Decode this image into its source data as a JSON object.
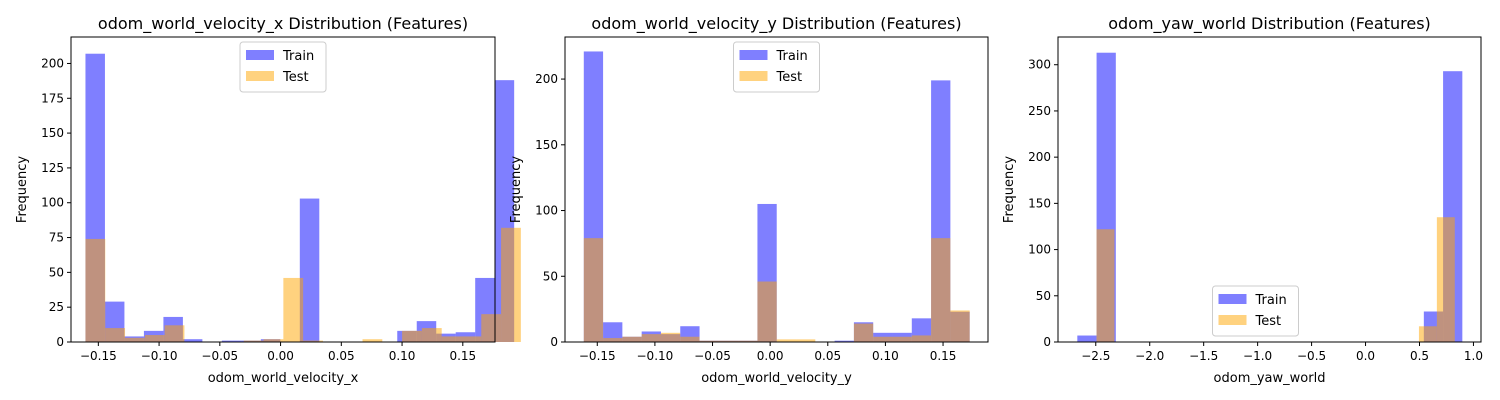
{
  "chart_data": [
    {
      "type": "bar",
      "title": "odom_world_velocity_x Distribution (Features)",
      "xlabel": "odom_world_velocity_x",
      "ylabel": "Frequency",
      "xlim": [
        -0.1725,
        0.1765
      ],
      "ylim": [
        0,
        219
      ],
      "xticks": [
        -0.15,
        -0.1,
        -0.05,
        0.0,
        0.05,
        0.1,
        0.15
      ],
      "xtick_labels": [
        "−0.15",
        "−0.10",
        "−0.05",
        "0.00",
        "0.05",
        "0.10",
        "0.15"
      ],
      "yticks": [
        0,
        25,
        50,
        75,
        100,
        125,
        150,
        175,
        200
      ],
      "ytick_labels": [
        "0",
        "25",
        "50",
        "75",
        "100",
        "125",
        "150",
        "175",
        "200"
      ],
      "legend_position": "top-center",
      "grid": false,
      "series": [
        {
          "name": "Train",
          "color": "#0000ff",
          "alpha": 0.5,
          "bin_start": -0.1606,
          "bin_width": 0.01604,
          "counts": [
            207,
            29,
            4,
            8,
            18,
            2,
            0,
            1,
            1,
            2,
            0,
            103,
            0,
            0,
            0,
            0,
            8,
            15,
            6,
            7,
            46,
            188
          ]
        },
        {
          "name": "Test",
          "color": "#ffa500",
          "alpha": 0.5,
          "bin_start": -0.1606,
          "bin_width": 0.01629,
          "counts": [
            74,
            10,
            3,
            5,
            12,
            0,
            0,
            0,
            1,
            2,
            46,
            1,
            0,
            0,
            2,
            0,
            8,
            10,
            4,
            4,
            20,
            82
          ]
        }
      ]
    },
    {
      "type": "bar",
      "title": "odom_world_velocity_y Distribution (Features)",
      "xlabel": "odom_world_velocity_y",
      "ylabel": "Frequency",
      "xlim": [
        -0.178,
        0.189
      ],
      "ylim": [
        0,
        232
      ],
      "xticks": [
        -0.15,
        -0.1,
        -0.05,
        0.0,
        0.05,
        0.1,
        0.15
      ],
      "xtick_labels": [
        "−0.15",
        "−0.10",
        "−0.05",
        "0.00",
        "0.05",
        "0.10",
        "0.15"
      ],
      "yticks": [
        0,
        50,
        100,
        150,
        200
      ],
      "ytick_labels": [
        "0",
        "50",
        "100",
        "150",
        "200"
      ],
      "legend_position": "top-center",
      "grid": false,
      "series": [
        {
          "name": "Train",
          "color": "#0000ff",
          "alpha": 0.5,
          "bin_start": -0.1617,
          "bin_width": 0.01674,
          "counts": [
            221,
            15,
            4,
            8,
            6,
            12,
            1,
            1,
            1,
            105,
            0,
            0,
            0,
            1,
            15,
            7,
            7,
            18,
            199,
            23
          ]
        },
        {
          "name": "Test",
          "color": "#ffa500",
          "alpha": 0.5,
          "bin_start": -0.1617,
          "bin_width": 0.01674,
          "counts": [
            79,
            3,
            4,
            6,
            7,
            4,
            1,
            1,
            1,
            46,
            2,
            2,
            0,
            0,
            14,
            4,
            4,
            5,
            79,
            24
          ]
        }
      ]
    },
    {
      "type": "bar",
      "title": "odom_yaw_world Distribution (Features)",
      "xlabel": "odom_yaw_world",
      "ylabel": "Frequency",
      "xlim": [
        -2.85,
        1.07
      ],
      "ylim": [
        0,
        330
      ],
      "xticks": [
        -2.5,
        -2.0,
        -1.5,
        -1.0,
        -0.5,
        0.0,
        0.5,
        1.0
      ],
      "xtick_labels": [
        "−2.5",
        "−2.0",
        "−1.5",
        "−1.0",
        "−0.5",
        "0.0",
        "0.5",
        "1.0"
      ],
      "yticks": [
        0,
        50,
        100,
        150,
        200,
        250,
        300
      ],
      "ytick_labels": [
        "0",
        "50",
        "100",
        "150",
        "200",
        "250",
        "300"
      ],
      "legend_position": "bottom-center",
      "grid": false,
      "series": [
        {
          "name": "Train",
          "color": "#0000ff",
          "alpha": 0.5,
          "bin_start": -2.671,
          "bin_width": 0.1784,
          "counts": [
            7,
            313,
            0,
            0,
            0,
            0,
            0,
            0,
            0,
            0,
            0,
            0,
            0,
            0,
            0,
            0,
            0,
            0,
            33,
            293
          ]
        },
        {
          "name": "Test",
          "color": "#ffa500",
          "alpha": 0.5,
          "bin_start": -2.493,
          "bin_width": 0.166,
          "counts": [
            122,
            0,
            0,
            0,
            0,
            0,
            0,
            0,
            0,
            0,
            0,
            0,
            0,
            0,
            0,
            0,
            0,
            0,
            17,
            135
          ]
        }
      ]
    }
  ]
}
